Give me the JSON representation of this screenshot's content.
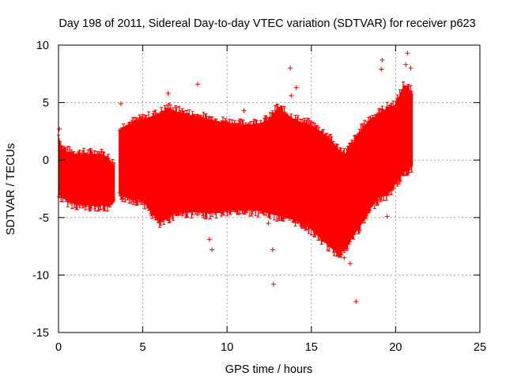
{
  "chart_data": {
    "type": "scatter",
    "title": "Day 198 of 2011, Sidereal Day-to-day VTEC variation (SDTVAR) for receiver p623",
    "xlabel": "GPS time / hours",
    "ylabel": "SDTVAR / TECUs",
    "xlim": [
      0,
      25
    ],
    "ylim": [
      -15,
      10
    ],
    "xticks": [
      0,
      5,
      10,
      15,
      20,
      25
    ],
    "yticks": [
      -15,
      -10,
      -5,
      0,
      5,
      10
    ],
    "grid": true,
    "marker": "+",
    "color": "#ff0000",
    "band_segments": [
      {
        "x": [
          0.0,
          0.2,
          0.5,
          1.0,
          1.5,
          2.0,
          2.5,
          2.8,
          3.0,
          3.3
        ],
        "lower": [
          -3.0,
          -3.2,
          -3.5,
          -3.8,
          -3.9,
          -3.9,
          -3.9,
          -4.0,
          -4.0,
          -3.6
        ],
        "upper": [
          2.0,
          1.0,
          0.7,
          0.5,
          0.5,
          0.5,
          0.5,
          0.3,
          0.0,
          -0.5
        ]
      },
      {
        "x": [
          3.6,
          4.0,
          5.0,
          6.0,
          6.5,
          7.0,
          8.0,
          9.0,
          10.0,
          11.0,
          12.0,
          12.5,
          13.0,
          13.5,
          14.0,
          14.5,
          15.0,
          15.5,
          16.0,
          16.5,
          17.0,
          17.5,
          18.0,
          18.5,
          19.0,
          19.5,
          20.0,
          20.5,
          21.0
        ],
        "lower": [
          -3.0,
          -3.2,
          -3.5,
          -5.5,
          -5.0,
          -4.5,
          -4.5,
          -4.6,
          -4.4,
          -4.3,
          -4.4,
          -4.6,
          -4.8,
          -5.0,
          -5.2,
          -5.5,
          -6.0,
          -6.7,
          -7.4,
          -8.0,
          -7.8,
          -6.5,
          -5.5,
          -4.2,
          -3.2,
          -3.0,
          -2.0,
          -1.0,
          -0.5
        ],
        "upper": [
          2.5,
          3.0,
          3.5,
          4.0,
          4.5,
          4.2,
          3.8,
          3.5,
          3.2,
          3.0,
          3.2,
          3.5,
          4.5,
          4.0,
          3.5,
          3.2,
          3.0,
          2.5,
          2.0,
          1.0,
          0.5,
          1.5,
          2.7,
          3.5,
          4.0,
          4.5,
          4.8,
          6.5,
          5.8
        ]
      }
    ],
    "outliers": [
      {
        "x": 0.05,
        "y": 2.7
      },
      {
        "x": 3.7,
        "y": 4.9
      },
      {
        "x": 3.85,
        "y": -2.6
      },
      {
        "x": 6.5,
        "y": 5.8
      },
      {
        "x": 8.25,
        "y": 6.6
      },
      {
        "x": 8.95,
        "y": -6.9
      },
      {
        "x": 9.1,
        "y": -7.8
      },
      {
        "x": 11.0,
        "y": 4.3
      },
      {
        "x": 12.45,
        "y": -5.5
      },
      {
        "x": 12.75,
        "y": -10.8
      },
      {
        "x": 12.7,
        "y": -7.8
      },
      {
        "x": 13.2,
        "y": 4.3
      },
      {
        "x": 13.75,
        "y": 8.0
      },
      {
        "x": 13.8,
        "y": 5.6
      },
      {
        "x": 14.1,
        "y": 6.3
      },
      {
        "x": 16.95,
        "y": -8.5
      },
      {
        "x": 17.3,
        "y": -9.0
      },
      {
        "x": 17.65,
        "y": -12.3
      },
      {
        "x": 19.5,
        "y": -4.9
      },
      {
        "x": 19.15,
        "y": 7.9
      },
      {
        "x": 19.2,
        "y": 8.7
      },
      {
        "x": 20.7,
        "y": 9.3
      },
      {
        "x": 20.6,
        "y": 8.3
      },
      {
        "x": 20.9,
        "y": 8.0
      }
    ]
  }
}
